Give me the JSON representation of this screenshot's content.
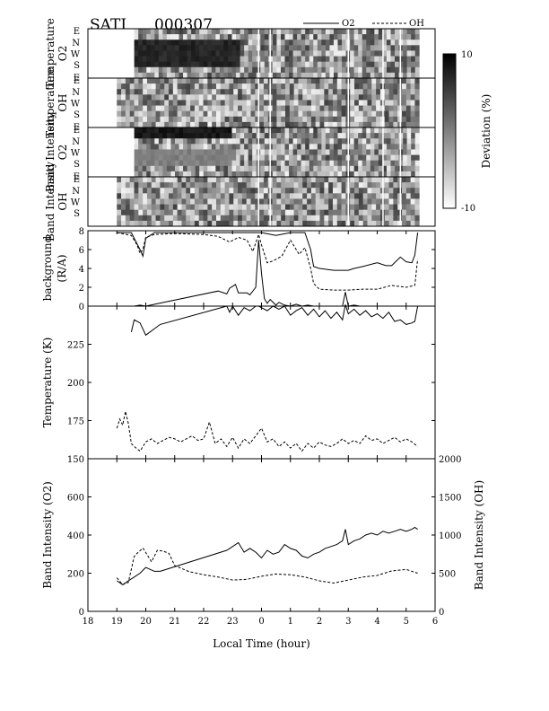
{
  "header": {
    "instrument": "SATI",
    "date_code": "000307",
    "legend_o2": "O2",
    "legend_oh": "OH"
  },
  "colorbar": {
    "max_label": "10",
    "min_label": "-10",
    "title": "Deviation (%)"
  },
  "keogram": {
    "direction_labels": [
      "E",
      "N",
      "W",
      "S",
      "E"
    ],
    "panels": [
      {
        "title_1": "Temperature",
        "title_2": "O2"
      },
      {
        "title_1": "Temperature",
        "title_2": "OH"
      },
      {
        "title_1": "Band Intensity",
        "title_2": "O2"
      },
      {
        "title_1": "Band Intensity",
        "title_2": "OH"
      }
    ]
  },
  "chart_data": [
    {
      "type": "line",
      "ylabel_1": "background",
      "ylabel_2": "(R/A)",
      "ylim": [
        0,
        8
      ],
      "yticks": [
        0,
        2,
        4,
        6,
        8
      ],
      "series": [
        {
          "name": "O2",
          "style": "solid",
          "x": [
            19.0,
            19.6,
            19.8,
            20.0,
            22.5,
            22.8,
            22.9,
            23.1,
            23.2,
            23.5,
            23.6,
            23.8,
            23.9,
            24.0,
            24.1,
            24.2,
            24.3,
            24.5,
            24.6,
            24.8,
            25.0,
            25.2,
            25.4,
            25.6,
            25.8,
            26.0,
            26.2,
            26.4,
            26.6,
            26.8,
            26.9,
            27.0,
            27.2,
            27.4,
            27.6,
            27.8,
            28.0,
            28.2,
            28.4,
            28.6,
            28.8,
            29.0,
            29.2,
            29.4
          ],
          "y": [
            0.0,
            0.0,
            0.1,
            0.0,
            1.6,
            1.3,
            1.9,
            2.3,
            1.4,
            1.4,
            1.2,
            2.0,
            7.0,
            3.5,
            0.8,
            0.3,
            0.7,
            0.1,
            0.4,
            0.1,
            0.0,
            0.2,
            0.0,
            0.1,
            0.0,
            0.0,
            0.0,
            0.0,
            0.0,
            0.0,
            1.5,
            0.0,
            0.1,
            0.0,
            0.0,
            0.0,
            0.0,
            0.0,
            0.0,
            0.0,
            0.0,
            0.0,
            0.0,
            0.0
          ]
        },
        {
          "name": "O2 background (upper curve)",
          "style": "solid",
          "x": [
            19.0,
            19.5,
            19.7,
            19.8,
            19.9,
            20.0,
            20.3,
            21.0,
            22.0,
            23.0,
            23.5,
            24.0,
            24.5,
            25.0,
            25.5,
            25.7,
            25.8,
            26.0,
            26.5,
            27.0,
            27.2,
            27.5,
            28.0,
            28.3,
            28.5,
            28.8,
            29.0,
            29.2,
            29.3,
            29.4
          ],
          "y": [
            7.8,
            7.8,
            6.6,
            6.0,
            5.3,
            7.2,
            7.8,
            7.8,
            7.8,
            7.8,
            7.8,
            7.8,
            7.5,
            7.8,
            7.8,
            6.0,
            4.2,
            4.0,
            3.8,
            3.8,
            4.0,
            4.2,
            4.6,
            4.3,
            4.3,
            5.2,
            4.7,
            4.6,
            5.4,
            7.8
          ]
        },
        {
          "name": "OH",
          "style": "dashed",
          "x": [
            19.0,
            19.5,
            19.7,
            19.8,
            19.9,
            20.0,
            20.3,
            21.0,
            22.0,
            22.5,
            22.9,
            23.2,
            23.5,
            23.7,
            23.9,
            24.0,
            24.2,
            24.4,
            24.7,
            25.0,
            25.3,
            25.5,
            25.7,
            25.8,
            26.0,
            26.5,
            27.0,
            27.5,
            28.0,
            28.5,
            29.0,
            29.3,
            29.4
          ],
          "y": [
            7.8,
            7.5,
            6.5,
            5.6,
            6.0,
            7.3,
            7.6,
            7.7,
            7.6,
            7.4,
            6.8,
            7.3,
            7.0,
            5.8,
            7.6,
            6.5,
            4.6,
            4.8,
            5.3,
            7.0,
            5.5,
            6.2,
            4.0,
            2.4,
            1.8,
            1.7,
            1.7,
            1.8,
            1.8,
            2.2,
            2.0,
            2.2,
            5.0
          ]
        }
      ]
    },
    {
      "type": "line",
      "ylabel": "Temperature (K)",
      "ylim": [
        150,
        250
      ],
      "yticks": [
        150,
        175,
        200,
        225
      ],
      "series": [
        {
          "name": "O2",
          "style": "solid",
          "x": [
            19.5,
            19.6,
            19.8,
            20.0,
            20.5,
            22.8,
            22.9,
            23.0,
            23.2,
            23.4,
            23.6,
            23.8,
            23.9,
            24.0,
            24.2,
            24.4,
            24.6,
            24.8,
            25.0,
            25.2,
            25.4,
            25.6,
            25.8,
            26.0,
            26.2,
            26.4,
            26.6,
            26.8,
            26.9,
            27.0,
            27.2,
            27.4,
            27.6,
            27.8,
            28.0,
            28.2,
            28.4,
            28.6,
            28.8,
            29.0,
            29.2,
            29.3,
            29.4
          ],
          "y": [
            233,
            241,
            239,
            231,
            238,
            250,
            246,
            250,
            244,
            249,
            247,
            250,
            250,
            249,
            247,
            250,
            248,
            250,
            244,
            247,
            249,
            244,
            248,
            243,
            247,
            242,
            246,
            241,
            251,
            245,
            248,
            244,
            247,
            243,
            245,
            242,
            246,
            240,
            241,
            238,
            239,
            240,
            250
          ]
        },
        {
          "name": "OH",
          "style": "dashed",
          "x": [
            19.0,
            19.1,
            19.2,
            19.3,
            19.4,
            19.5,
            19.6,
            19.8,
            20.0,
            20.2,
            20.4,
            20.6,
            20.8,
            21.0,
            21.2,
            21.4,
            21.6,
            21.8,
            22.0,
            22.2,
            22.4,
            22.6,
            22.8,
            23.0,
            23.2,
            23.4,
            23.6,
            23.8,
            24.0,
            24.2,
            24.4,
            24.6,
            24.8,
            25.0,
            25.2,
            25.4,
            25.6,
            25.8,
            26.0,
            26.2,
            26.4,
            26.6,
            26.8,
            27.0,
            27.2,
            27.4,
            27.6,
            27.8,
            28.0,
            28.2,
            28.4,
            28.6,
            28.8,
            29.0,
            29.2,
            29.4
          ],
          "y": [
            170,
            176,
            172,
            181,
            173,
            160,
            158,
            155,
            161,
            163,
            160,
            162,
            164,
            163,
            161,
            163,
            165,
            162,
            163,
            174,
            160,
            163,
            158,
            164,
            157,
            163,
            160,
            165,
            170,
            161,
            163,
            158,
            161,
            157,
            160,
            155,
            160,
            157,
            161,
            159,
            158,
            160,
            163,
            160,
            162,
            160,
            165,
            162,
            163,
            160,
            162,
            164,
            161,
            163,
            161,
            158
          ]
        }
      ]
    },
    {
      "type": "line",
      "ylabel_left": "Band Intensity (O2)",
      "ylabel_right": "Band Intensity (OH)",
      "xlabel": "Local Time (hour)",
      "xlim": [
        18,
        30
      ],
      "xticks": [
        18,
        19,
        20,
        21,
        22,
        23,
        24,
        25,
        26,
        27,
        28,
        29,
        30
      ],
      "xtick_labels": [
        "18",
        "19",
        "20",
        "21",
        "22",
        "23",
        "0",
        "1",
        "2",
        "3",
        "4",
        "5",
        "6"
      ],
      "ylim_left": [
        0,
        800
      ],
      "yticks_left": [
        0,
        200,
        400,
        600
      ],
      "ylim_right": [
        0,
        2000
      ],
      "yticks_right": [
        0,
        500,
        1000,
        1500,
        2000
      ],
      "series": [
        {
          "name": "O2",
          "style": "solid",
          "axis": "left",
          "x": [
            19.0,
            19.2,
            19.4,
            19.6,
            19.8,
            20.0,
            20.3,
            20.5,
            22.8,
            23.0,
            23.2,
            23.4,
            23.6,
            23.8,
            24.0,
            24.2,
            24.4,
            24.6,
            24.8,
            25.0,
            25.2,
            25.4,
            25.6,
            25.8,
            26.0,
            26.2,
            26.4,
            26.6,
            26.8,
            26.9,
            27.0,
            27.2,
            27.4,
            27.6,
            27.8,
            28.0,
            28.2,
            28.4,
            28.6,
            28.8,
            29.0,
            29.2,
            29.3,
            29.4
          ],
          "y": [
            160,
            140,
            160,
            180,
            200,
            230,
            210,
            210,
            320,
            340,
            360,
            310,
            330,
            310,
            280,
            320,
            300,
            310,
            350,
            330,
            320,
            290,
            280,
            300,
            310,
            330,
            340,
            350,
            370,
            430,
            350,
            370,
            380,
            400,
            410,
            400,
            420,
            410,
            420,
            430,
            420,
            430,
            440,
            430
          ]
        },
        {
          "name": "OH",
          "style": "dashed",
          "axis": "right",
          "x": [
            19.0,
            19.2,
            19.4,
            19.6,
            19.7,
            19.9,
            20.0,
            20.2,
            20.4,
            20.6,
            20.8,
            21.0,
            21.5,
            22.0,
            22.5,
            23.0,
            23.5,
            24.0,
            24.5,
            25.0,
            25.5,
            26.0,
            26.5,
            27.0,
            27.5,
            28.0,
            28.5,
            29.0,
            29.4
          ],
          "y": [
            440,
            350,
            380,
            720,
            760,
            830,
            770,
            650,
            800,
            790,
            760,
            600,
            520,
            480,
            450,
            410,
            420,
            460,
            490,
            480,
            450,
            400,
            370,
            410,
            450,
            470,
            530,
            550,
            500
          ]
        }
      ]
    }
  ]
}
